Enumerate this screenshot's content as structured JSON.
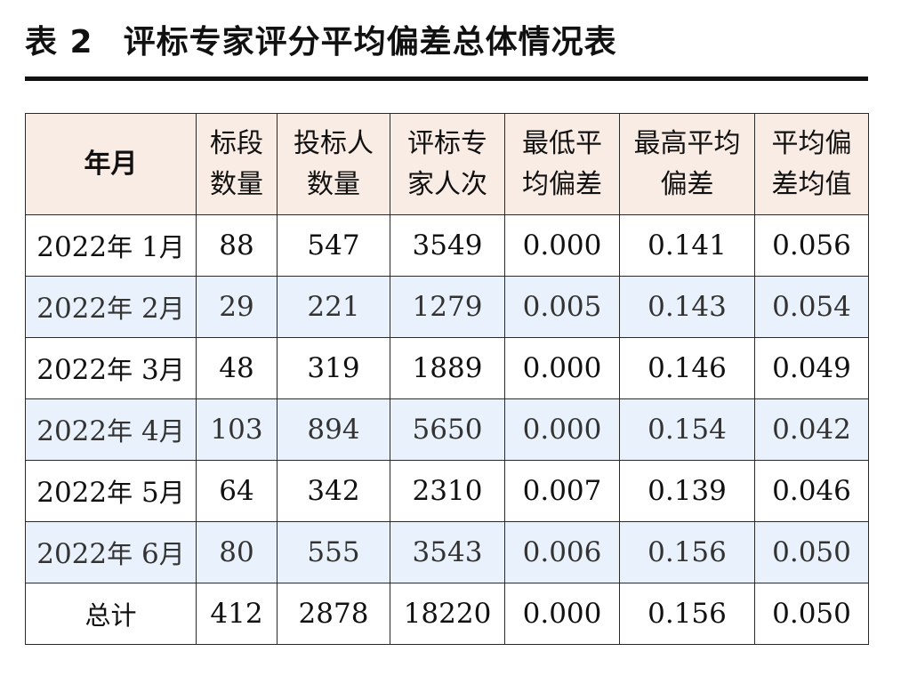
{
  "title": {
    "number": "表 2",
    "text": "评标专家评分平均偏差总体情况表"
  },
  "table": {
    "headers": [
      {
        "line1": "年月",
        "line2": ""
      },
      {
        "line1": "标段",
        "line2": "数量"
      },
      {
        "line1": "投标人",
        "line2": "数量"
      },
      {
        "line1": "评标专",
        "line2": "家人次"
      },
      {
        "line1": "最低平",
        "line2": "均偏差"
      },
      {
        "line1": "最高平均",
        "line2": "偏差"
      },
      {
        "line1": "平均偏",
        "line2": "差均值"
      }
    ],
    "rows": [
      {
        "year": "2022",
        "y_suffix": "年",
        "month": "1",
        "m_suffix": "月",
        "segments": "88",
        "bidders": "547",
        "experts": "3549",
        "min_dev": "0.000",
        "max_dev": "0.141",
        "avg_dev": "0.056"
      },
      {
        "year": "2022",
        "y_suffix": "年",
        "month": "2",
        "m_suffix": "月",
        "segments": "29",
        "bidders": "221",
        "experts": "1279",
        "min_dev": "0.005",
        "max_dev": "0.143",
        "avg_dev": "0.054"
      },
      {
        "year": "2022",
        "y_suffix": "年",
        "month": "3",
        "m_suffix": "月",
        "segments": "48",
        "bidders": "319",
        "experts": "1889",
        "min_dev": "0.000",
        "max_dev": "0.146",
        "avg_dev": "0.049"
      },
      {
        "year": "2022",
        "y_suffix": "年",
        "month": "4",
        "m_suffix": "月",
        "segments": "103",
        "bidders": "894",
        "experts": "5650",
        "min_dev": "0.000",
        "max_dev": "0.154",
        "avg_dev": "0.042"
      },
      {
        "year": "2022",
        "y_suffix": "年",
        "month": "5",
        "m_suffix": "月",
        "segments": "64",
        "bidders": "342",
        "experts": "2310",
        "min_dev": "0.007",
        "max_dev": "0.139",
        "avg_dev": "0.046"
      },
      {
        "year": "2022",
        "y_suffix": "年",
        "month": "6",
        "m_suffix": "月",
        "segments": "80",
        "bidders": "555",
        "experts": "3543",
        "min_dev": "0.006",
        "max_dev": "0.156",
        "avg_dev": "0.050"
      }
    ],
    "total": {
      "label": "总计",
      "segments": "412",
      "bidders": "2878",
      "experts": "18220",
      "min_dev": "0.000",
      "max_dev": "0.156",
      "avg_dev": "0.050"
    }
  },
  "colors": {
    "header_bg": "#f9ece4",
    "alt_row_bg": "#e9f2fc",
    "border": "#2a2a2a"
  }
}
